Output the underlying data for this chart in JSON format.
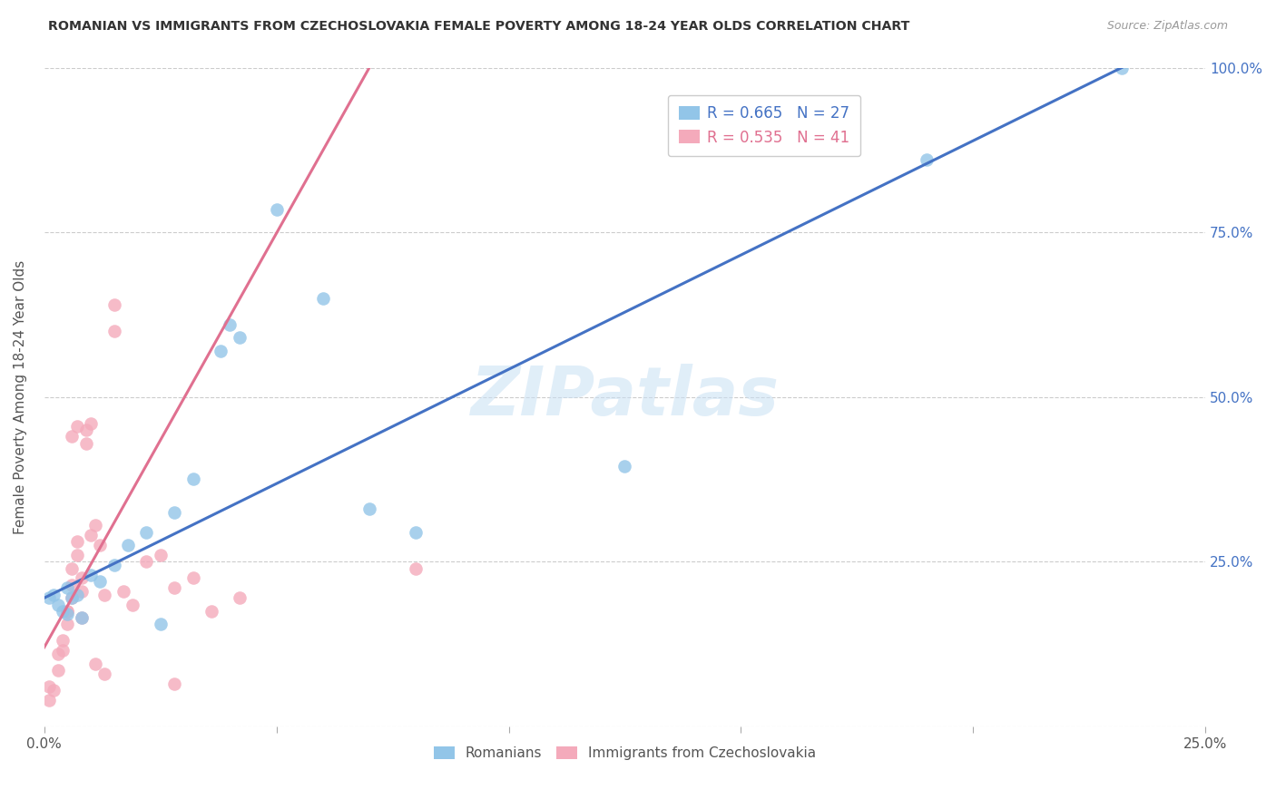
{
  "title": "ROMANIAN VS IMMIGRANTS FROM CZECHOSLOVAKIA FEMALE POVERTY AMONG 18-24 YEAR OLDS CORRELATION CHART",
  "source": "Source: ZipAtlas.com",
  "ylabel": "Female Poverty Among 18-24 Year Olds",
  "xlim": [
    0,
    0.25
  ],
  "ylim": [
    0,
    1.0
  ],
  "blue_R": 0.665,
  "blue_N": 27,
  "pink_R": 0.535,
  "pink_N": 41,
  "blue_color": "#92C5E8",
  "pink_color": "#F4AABB",
  "blue_line_color": "#4472C4",
  "pink_line_color": "#E07090",
  "blue_scatter_x": [
    0.001,
    0.002,
    0.003,
    0.004,
    0.005,
    0.005,
    0.006,
    0.007,
    0.008,
    0.01,
    0.012,
    0.015,
    0.018,
    0.022,
    0.028,
    0.032,
    0.038,
    0.042,
    0.05,
    0.06,
    0.07,
    0.08,
    0.125,
    0.19,
    0.232,
    0.04,
    0.025
  ],
  "blue_scatter_y": [
    0.195,
    0.2,
    0.185,
    0.175,
    0.17,
    0.21,
    0.195,
    0.2,
    0.165,
    0.23,
    0.22,
    0.245,
    0.275,
    0.295,
    0.325,
    0.375,
    0.57,
    0.59,
    0.785,
    0.65,
    0.33,
    0.295,
    0.395,
    0.86,
    1.0,
    0.61,
    0.155
  ],
  "pink_scatter_x": [
    0.001,
    0.001,
    0.002,
    0.003,
    0.003,
    0.004,
    0.004,
    0.005,
    0.005,
    0.006,
    0.006,
    0.006,
    0.007,
    0.007,
    0.008,
    0.008,
    0.009,
    0.009,
    0.01,
    0.01,
    0.011,
    0.012,
    0.013,
    0.015,
    0.015,
    0.017,
    0.019,
    0.022,
    0.025,
    0.028,
    0.032,
    0.036,
    0.042,
    0.08,
    0.028,
    0.007,
    0.006,
    0.005,
    0.008,
    0.011,
    0.013
  ],
  "pink_scatter_y": [
    0.04,
    0.06,
    0.055,
    0.085,
    0.11,
    0.115,
    0.13,
    0.155,
    0.175,
    0.195,
    0.215,
    0.24,
    0.26,
    0.28,
    0.205,
    0.225,
    0.43,
    0.45,
    0.46,
    0.29,
    0.305,
    0.275,
    0.2,
    0.6,
    0.64,
    0.205,
    0.185,
    0.25,
    0.26,
    0.21,
    0.225,
    0.175,
    0.195,
    0.24,
    0.065,
    0.455,
    0.44,
    0.175,
    0.165,
    0.095,
    0.08
  ]
}
